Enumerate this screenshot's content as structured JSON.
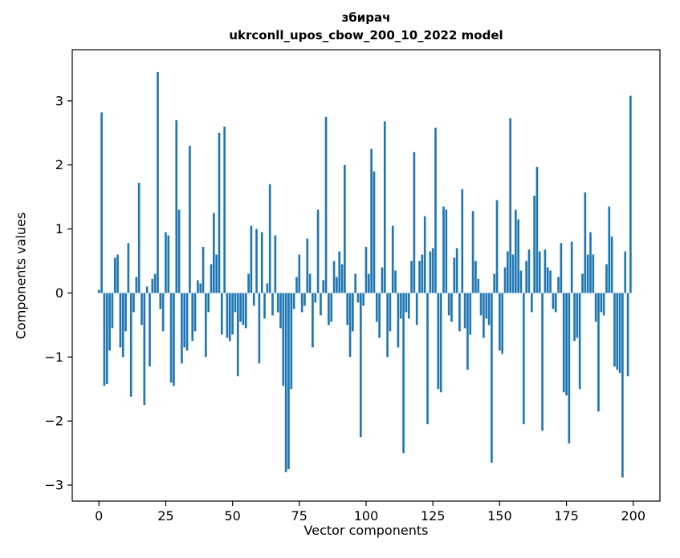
{
  "figure": {
    "title_line1": "збирач",
    "title_line2": "ukrconll_upos_cbow_200_10_2022 model",
    "xlabel": "Vector components",
    "ylabel": "Components values"
  },
  "chart_data": {
    "type": "bar",
    "title": "збирач",
    "subtitle": "ukrconll_upos_cbow_200_10_2022 model",
    "xlabel": "Vector components",
    "ylabel": "Components values",
    "x_start": 0,
    "xlim": [
      -10,
      210
    ],
    "ylim": [
      -3.25,
      3.8
    ],
    "x_ticks": [
      0,
      25,
      50,
      75,
      100,
      125,
      150,
      175,
      200
    ],
    "x_tick_labels": [
      "0",
      "25",
      "50",
      "75",
      "100",
      "125",
      "150",
      "175",
      "200"
    ],
    "y_ticks": [
      -3,
      -2,
      -1,
      0,
      1,
      2,
      3
    ],
    "y_tick_labels": [
      "−3",
      "−2",
      "−1",
      "0",
      "1",
      "2",
      "3"
    ],
    "bar_color": "#1f77b4",
    "grid": false,
    "legend": null,
    "values": [
      0.05,
      2.82,
      -1.45,
      -1.42,
      -0.9,
      -0.55,
      0.55,
      0.6,
      -0.85,
      -1.0,
      -0.6,
      0.78,
      -1.62,
      -0.3,
      0.25,
      1.72,
      -0.5,
      -1.75,
      0.1,
      -1.15,
      0.22,
      0.3,
      3.45,
      -0.25,
      -0.6,
      0.95,
      0.9,
      -1.4,
      -1.45,
      2.7,
      1.3,
      -1.1,
      -0.85,
      -0.9,
      2.3,
      -0.75,
      -0.6,
      0.2,
      0.15,
      0.72,
      -1.0,
      -0.3,
      0.45,
      1.25,
      0.6,
      2.5,
      -0.65,
      2.6,
      -0.7,
      -0.75,
      -0.65,
      -0.3,
      -1.3,
      -0.45,
      -0.5,
      -0.55,
      0.3,
      1.05,
      -0.2,
      1.0,
      -1.1,
      0.95,
      -0.4,
      0.15,
      1.7,
      -0.35,
      0.9,
      -0.3,
      -0.55,
      -1.45,
      -2.8,
      -2.75,
      -1.5,
      -0.25,
      0.25,
      0.6,
      -0.3,
      -0.2,
      0.85,
      0.3,
      -0.85,
      -0.15,
      1.3,
      -0.35,
      0.2,
      2.75,
      -0.5,
      -0.45,
      0.5,
      0.25,
      0.65,
      0.45,
      2.0,
      -0.5,
      -1.0,
      -0.6,
      0.3,
      -0.15,
      -2.25,
      -0.2,
      0.72,
      0.3,
      2.25,
      1.9,
      -0.45,
      -0.7,
      0.4,
      2.68,
      -1.0,
      -0.6,
      1.05,
      0.35,
      -0.85,
      -0.4,
      -2.5,
      -0.3,
      -0.4,
      0.5,
      2.2,
      -0.5,
      0.5,
      0.6,
      1.2,
      -2.05,
      0.65,
      0.7,
      2.58,
      -1.5,
      -1.55,
      1.35,
      1.3,
      -0.35,
      -0.45,
      0.55,
      0.7,
      -0.6,
      1.62,
      -0.55,
      -1.2,
      -0.65,
      1.28,
      0.5,
      0.22,
      -0.35,
      -0.7,
      -0.4,
      -0.5,
      -2.65,
      0.3,
      1.45,
      -0.9,
      -0.95,
      0.4,
      0.65,
      2.73,
      0.6,
      1.3,
      1.15,
      0.35,
      -2.05,
      0.5,
      0.68,
      -0.3,
      1.52,
      1.97,
      0.65,
      -2.15,
      0.68,
      0.4,
      0.35,
      -0.25,
      -0.3,
      0.25,
      0.78,
      -1.55,
      -1.6,
      -2.35,
      0.8,
      -0.75,
      -0.7,
      -1.5,
      0.3,
      1.57,
      0.6,
      0.95,
      0.6,
      -0.45,
      -1.85,
      -0.3,
      -0.35,
      0.45,
      1.35,
      0.88,
      -1.15,
      -1.2,
      -1.25,
      -2.88,
      0.65,
      -1.3,
      3.08
    ]
  }
}
